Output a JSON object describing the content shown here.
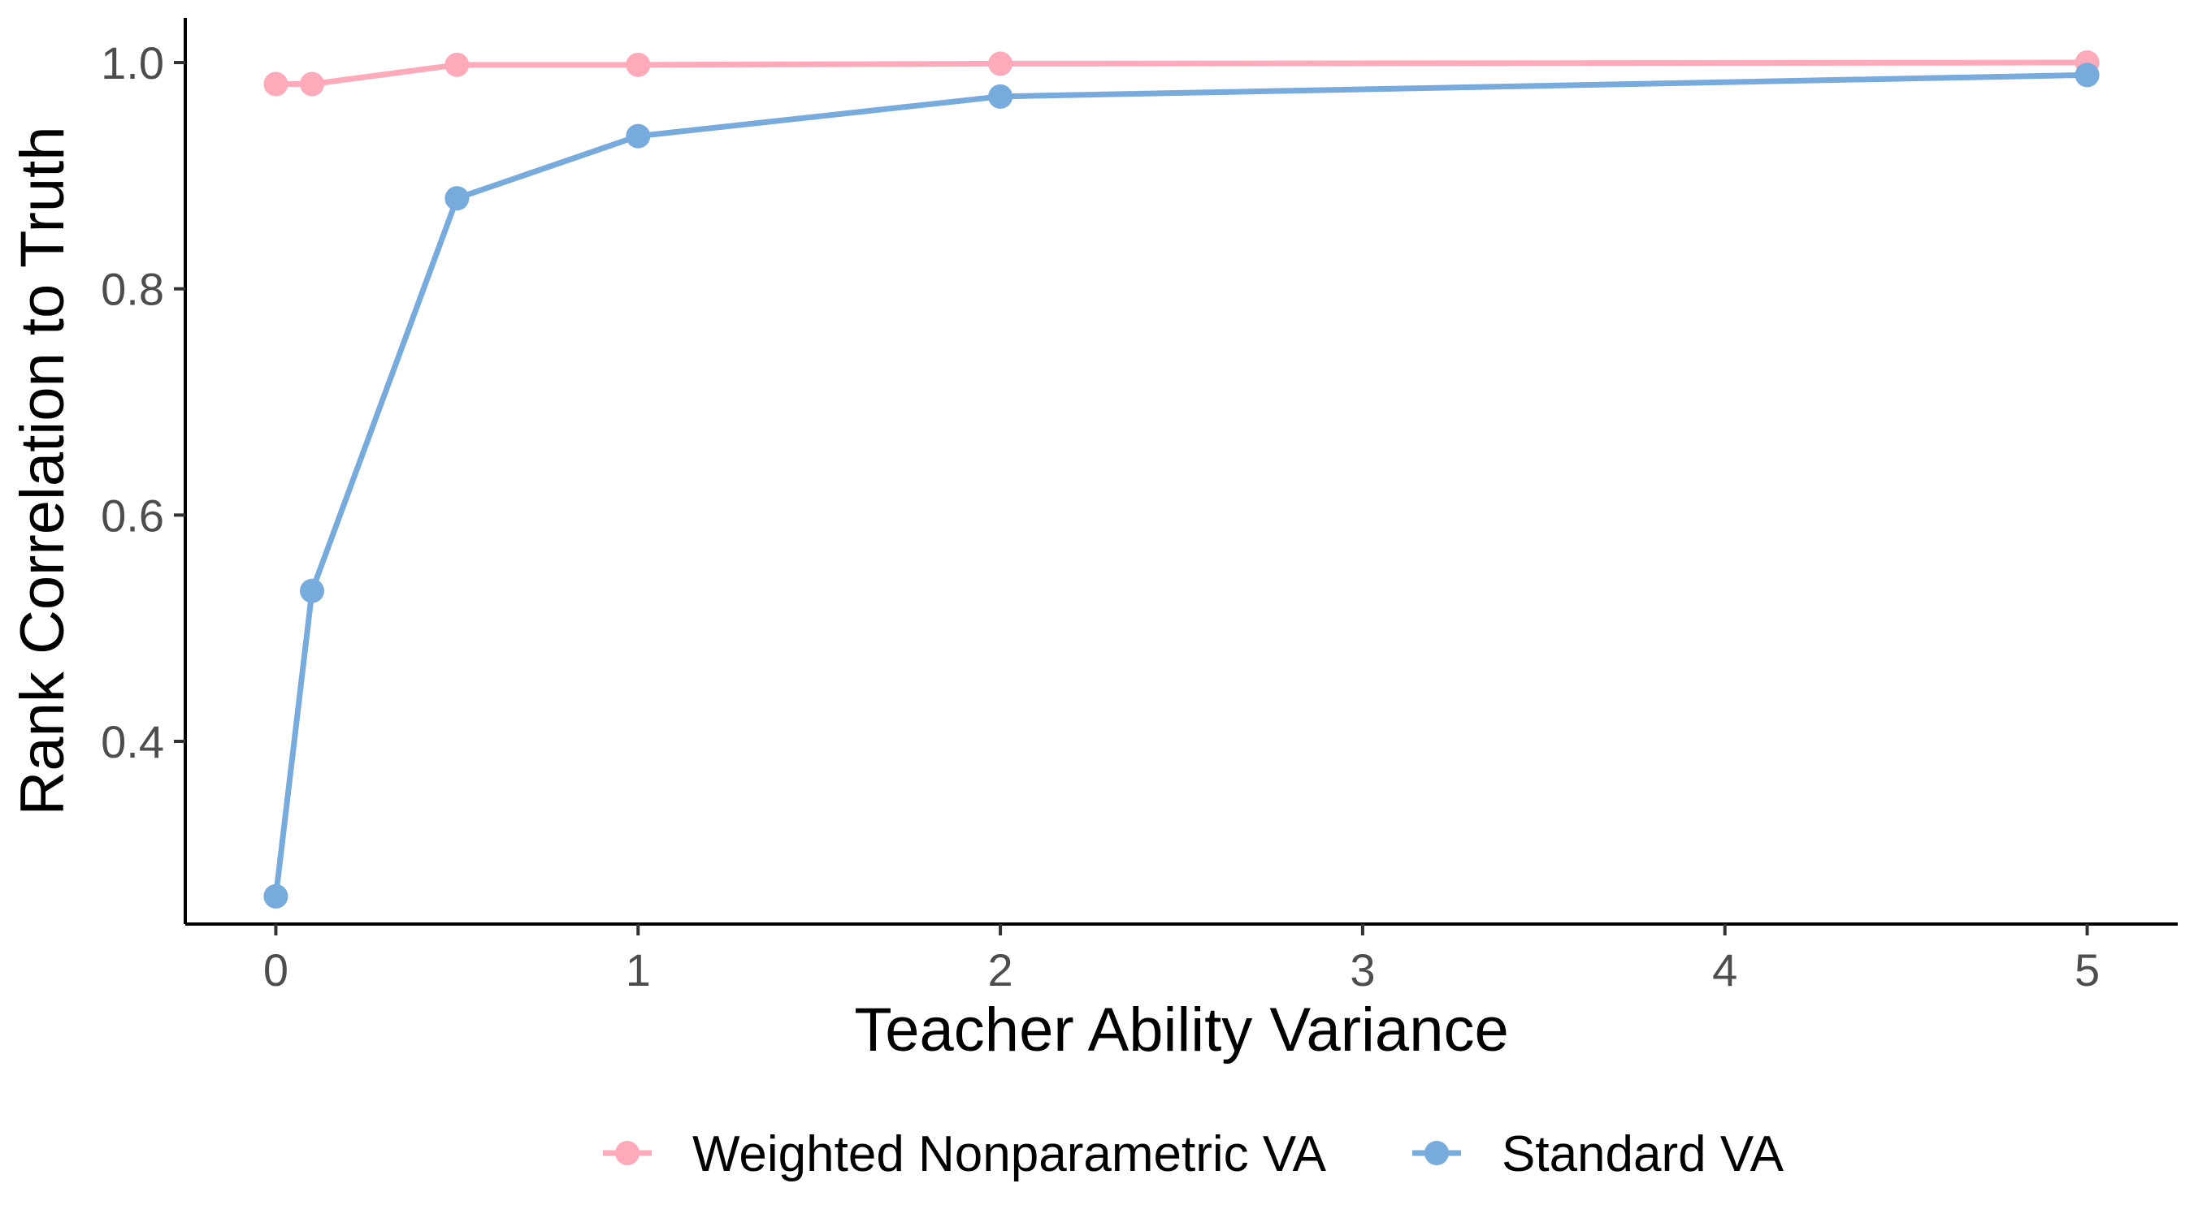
{
  "chart_data": {
    "type": "line",
    "title": "",
    "xlabel": "Teacher Ability Variance",
    "ylabel": "Rank Correlation to Truth",
    "xlim": [
      -0.25,
      5.25
    ],
    "ylim": [
      0.2385,
      1.0395
    ],
    "x_ticks": [
      0,
      1,
      2,
      3,
      4,
      5
    ],
    "y_ticks": [
      0.4,
      0.6,
      0.8,
      1.0
    ],
    "x_tick_labels": [
      "0",
      "1",
      "2",
      "3",
      "4",
      "5"
    ],
    "y_tick_labels": [
      "0.4",
      "0.6",
      "0.8",
      "1.0"
    ],
    "grid": false,
    "legend_position": "bottom",
    "series": [
      {
        "name": "Weighted Nonparametric VA",
        "color": "#FFAABB",
        "x": [
          0,
          0.1,
          0.5,
          1,
          2,
          5
        ],
        "values": [
          0.981,
          0.981,
          0.998,
          0.998,
          0.999,
          1.0
        ]
      },
      {
        "name": "Standard VA",
        "color": "#77AADD",
        "x": [
          0,
          0.1,
          0.5,
          1,
          2,
          5
        ],
        "values": [
          0.263,
          0.533,
          0.88,
          0.935,
          0.97,
          0.989
        ]
      }
    ]
  }
}
